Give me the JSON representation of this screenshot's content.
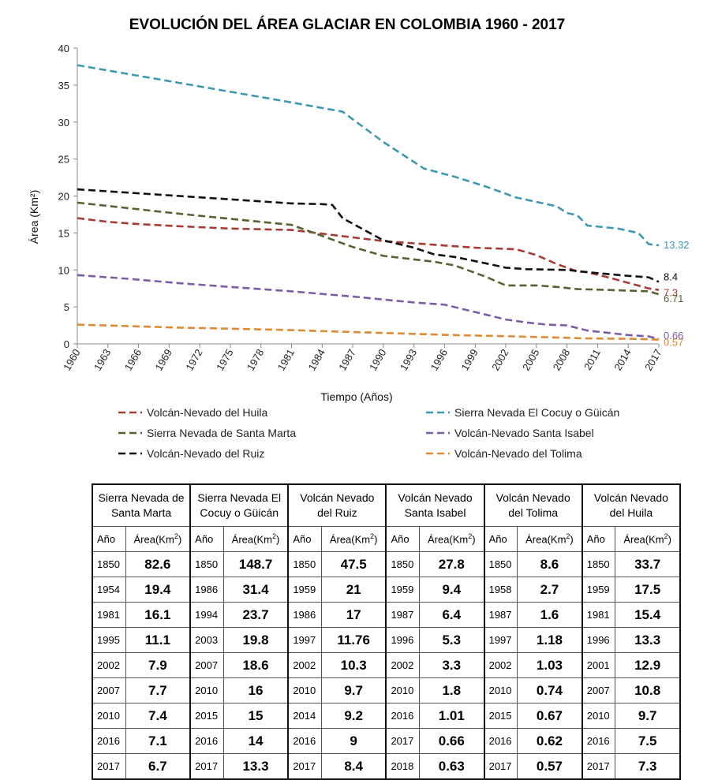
{
  "chart_data": {
    "type": "line",
    "title": "EVOLUCIÓN DEL ÁREA GLACIAR EN COLOMBIA 1960 - 2017",
    "xlabel": "Tiempo (Años)",
    "ylabel": "Área (Km²)",
    "xlim": [
      1960,
      2017
    ],
    "ylim": [
      0,
      40
    ],
    "x_ticks": [
      "1960",
      "1963",
      "1966",
      "1969",
      "1972",
      "1975",
      "1978",
      "1981",
      "1984",
      "1987",
      "1990",
      "1993",
      "1996",
      "1999",
      "2002",
      "2005",
      "2008",
      "2011",
      "2014",
      "2017"
    ],
    "y_ticks": [
      "0",
      "5",
      "10",
      "15",
      "20",
      "25",
      "30",
      "35",
      "40"
    ],
    "grid": false,
    "legend_position": "bottom",
    "series": [
      {
        "name": "Volcán-Nevado del Huila",
        "color": "#a83a36",
        "points": [
          [
            1960,
            17.0
          ],
          [
            1963,
            16.5
          ],
          [
            1966,
            16.2
          ],
          [
            1970,
            15.9
          ],
          [
            1975,
            15.6
          ],
          [
            1981,
            15.4
          ],
          [
            1984,
            14.9
          ],
          [
            1987,
            14.4
          ],
          [
            1990,
            13.9
          ],
          [
            1993,
            13.6
          ],
          [
            1996,
            13.3
          ],
          [
            1999,
            13.0
          ],
          [
            2001,
            12.9
          ],
          [
            2003,
            12.8
          ],
          [
            2005,
            12.0
          ],
          [
            2007,
            10.8
          ],
          [
            2009,
            9.8
          ],
          [
            2010,
            9.7
          ],
          [
            2012,
            9.0
          ],
          [
            2016,
            7.5
          ],
          [
            2017,
            7.3
          ]
        ],
        "end_label": "7.3"
      },
      {
        "name": "Sierra Nevada El Cocuy o Güicán",
        "color": "#3e98b2",
        "points": [
          [
            1960,
            37.7
          ],
          [
            1970,
            35.3
          ],
          [
            1980,
            32.9
          ],
          [
            1986,
            31.4
          ],
          [
            1990,
            27.3
          ],
          [
            1994,
            23.7
          ],
          [
            1997,
            22.6
          ],
          [
            2000,
            21.3
          ],
          [
            2003,
            19.8
          ],
          [
            2005,
            19.2
          ],
          [
            2007,
            18.6
          ],
          [
            2008,
            17.7
          ],
          [
            2009,
            17.4
          ],
          [
            2010,
            16.0
          ],
          [
            2013,
            15.6
          ],
          [
            2015,
            15.0
          ],
          [
            2016,
            13.5
          ],
          [
            2017,
            13.32
          ]
        ],
        "end_label": "13.32"
      },
      {
        "name": "Sierra Nevada de Santa Marta",
        "color": "#556330",
        "points": [
          [
            1960,
            19.1
          ],
          [
            1970,
            17.6
          ],
          [
            1978,
            16.5
          ],
          [
            1981,
            16.1
          ],
          [
            1984,
            14.6
          ],
          [
            1987,
            13.1
          ],
          [
            1990,
            11.9
          ],
          [
            1995,
            11.1
          ],
          [
            1997,
            10.6
          ],
          [
            2000,
            9.1
          ],
          [
            2002,
            7.9
          ],
          [
            2005,
            7.9
          ],
          [
            2007,
            7.7
          ],
          [
            2009,
            7.4
          ],
          [
            2012,
            7.3
          ],
          [
            2016,
            7.1
          ],
          [
            2017,
            6.71
          ]
        ],
        "end_label": "6.71"
      },
      {
        "name": "Volcán-Nevado Santa Isabel",
        "color": "#7a5da6",
        "points": [
          [
            1960,
            9.3
          ],
          [
            1965,
            8.8
          ],
          [
            1970,
            8.2
          ],
          [
            1975,
            7.7
          ],
          [
            1981,
            7.1
          ],
          [
            1987,
            6.4
          ],
          [
            1990,
            6.0
          ],
          [
            1993,
            5.6
          ],
          [
            1996,
            5.3
          ],
          [
            1999,
            4.3
          ],
          [
            2002,
            3.3
          ],
          [
            2004,
            2.9
          ],
          [
            2006,
            2.6
          ],
          [
            2008,
            2.5
          ],
          [
            2010,
            1.8
          ],
          [
            2014,
            1.2
          ],
          [
            2016,
            1.01
          ],
          [
            2017,
            0.66
          ]
        ],
        "end_label": "0.66"
      },
      {
        "name": "Volcán-Nevado del Ruiz",
        "color": "#111111",
        "points": [
          [
            1960,
            20.9
          ],
          [
            1970,
            20.0
          ],
          [
            1981,
            19.0
          ],
          [
            1984,
            18.9
          ],
          [
            1985,
            18.8
          ],
          [
            1986,
            17.0
          ],
          [
            1988,
            15.5
          ],
          [
            1990,
            14.0
          ],
          [
            1993,
            13.0
          ],
          [
            1995,
            12.1
          ],
          [
            1997,
            11.76
          ],
          [
            2000,
            10.9
          ],
          [
            2002,
            10.3
          ],
          [
            2004,
            10.1
          ],
          [
            2008,
            10.0
          ],
          [
            2010,
            9.7
          ],
          [
            2014,
            9.2
          ],
          [
            2016,
            9.0
          ],
          [
            2017,
            8.4
          ]
        ],
        "end_label": "8.4"
      },
      {
        "name": "Volcán-Nevado del Tolima",
        "color": "#e08a35",
        "points": [
          [
            1960,
            2.6
          ],
          [
            1970,
            2.2
          ],
          [
            1980,
            1.9
          ],
          [
            1987,
            1.6
          ],
          [
            1997,
            1.18
          ],
          [
            2002,
            1.03
          ],
          [
            2006,
            0.9
          ],
          [
            2010,
            0.74
          ],
          [
            2015,
            0.67
          ],
          [
            2016,
            0.62
          ],
          [
            2017,
            0.57
          ]
        ],
        "end_label": "0.57"
      }
    ]
  },
  "table": {
    "year_header": "Año",
    "area_header": "Área(Km",
    "area_sup": "2",
    "area_close": ")",
    "groups": [
      {
        "name_line1": "Sierra Nevada de",
        "name_line2": "Santa Marta",
        "rows": [
          [
            "1850",
            "82.6"
          ],
          [
            "1954",
            "19.4"
          ],
          [
            "1981",
            "16.1"
          ],
          [
            "1995",
            "11.1"
          ],
          [
            "2002",
            "7.9"
          ],
          [
            "2007",
            "7.7"
          ],
          [
            "2010",
            "7.4"
          ],
          [
            "2016",
            "7.1"
          ],
          [
            "2017",
            "6.7"
          ]
        ]
      },
      {
        "name_line1": "Sierra Nevada El",
        "name_line2": "Cocuy o Güicán",
        "rows": [
          [
            "1850",
            "148.7"
          ],
          [
            "1986",
            "31.4"
          ],
          [
            "1994",
            "23.7"
          ],
          [
            "2003",
            "19.8"
          ],
          [
            "2007",
            "18.6"
          ],
          [
            "2010",
            "16"
          ],
          [
            "2015",
            "15"
          ],
          [
            "2016",
            "14"
          ],
          [
            "2017",
            "13.3"
          ]
        ]
      },
      {
        "name_line1": "Volcán Nevado",
        "name_line2": "del Ruiz",
        "rows": [
          [
            "1850",
            "47.5"
          ],
          [
            "1959",
            "21"
          ],
          [
            "1986",
            "17"
          ],
          [
            "1997",
            "11.76"
          ],
          [
            "2002",
            "10.3"
          ],
          [
            "2010",
            "9.7"
          ],
          [
            "2014",
            "9.2"
          ],
          [
            "2016",
            "9"
          ],
          [
            "2017",
            "8.4"
          ]
        ]
      },
      {
        "name_line1": "Volcán Nevado",
        "name_line2": "Santa Isabel",
        "rows": [
          [
            "1850",
            "27.8"
          ],
          [
            "1959",
            "9.4"
          ],
          [
            "1987",
            "6.4"
          ],
          [
            "1996",
            "5.3"
          ],
          [
            "2002",
            "3.3"
          ],
          [
            "2010",
            "1.8"
          ],
          [
            "2016",
            "1.01"
          ],
          [
            "2017",
            "0.66"
          ],
          [
            "2018",
            "0.63"
          ]
        ]
      },
      {
        "name_line1": "Volcán Nevado",
        "name_line2": "del Tolima",
        "rows": [
          [
            "1850",
            "8.6"
          ],
          [
            "1958",
            "2.7"
          ],
          [
            "1987",
            "1.6"
          ],
          [
            "1997",
            "1.18"
          ],
          [
            "2002",
            "1.03"
          ],
          [
            "2010",
            "0.74"
          ],
          [
            "2015",
            "0.67"
          ],
          [
            "2016",
            "0.62"
          ],
          [
            "2017",
            "0.57"
          ]
        ]
      },
      {
        "name_line1": "Volcán Nevado",
        "name_line2": "del Huila",
        "rows": [
          [
            "1850",
            "33.7"
          ],
          [
            "1959",
            "17.5"
          ],
          [
            "1981",
            "15.4"
          ],
          [
            "1996",
            "13.3"
          ],
          [
            "2001",
            "12.9"
          ],
          [
            "2007",
            "10.8"
          ],
          [
            "2010",
            "9.7"
          ],
          [
            "2016",
            "7.5"
          ],
          [
            "2017",
            "7.3"
          ]
        ]
      }
    ]
  }
}
